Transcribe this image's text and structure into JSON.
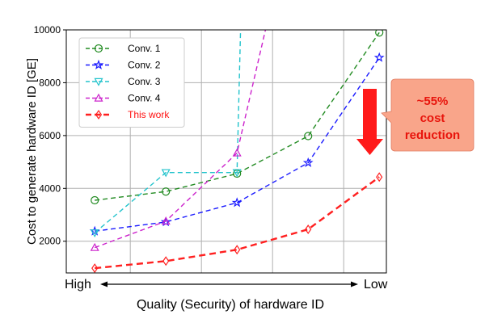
{
  "chart_data": {
    "type": "line",
    "ylabel": "Cost to generate hardware ID [GE]",
    "xlabel": "Quality (Security) of hardware ID",
    "x_end_labels": {
      "left": "High",
      "right": "Low"
    },
    "ylim": [
      800,
      10000
    ],
    "yticks": [
      2000,
      4000,
      6000,
      8000,
      10000
    ],
    "grid": true,
    "legend_position": "top-left",
    "series": [
      {
        "name": "Conv. 1",
        "color": "#228b22",
        "marker": "circle",
        "dash": "dashed",
        "x": [
          1,
          2,
          3,
          4,
          5
        ],
        "y": [
          3550,
          3880,
          4560,
          5980,
          9900
        ]
      },
      {
        "name": "Conv. 2",
        "color": "#1a1aff",
        "marker": "star",
        "dash": "dashed",
        "x": [
          1,
          2,
          3,
          4,
          5
        ],
        "y": [
          2380,
          2730,
          3460,
          4970,
          8950
        ]
      },
      {
        "name": "Conv. 3",
        "color": "#22c3cc",
        "marker": "triangle-down",
        "dash": "dashed",
        "x": [
          1,
          2,
          3,
          3.05
        ],
        "y": [
          2320,
          4600,
          4600,
          10000
        ]
      },
      {
        "name": "Conv. 4",
        "color": "#cc22cc",
        "marker": "triangle-up",
        "dash": "dashed",
        "x": [
          1,
          2,
          3,
          3.4
        ],
        "y": [
          1760,
          2760,
          5340,
          10000
        ]
      },
      {
        "name": "This work",
        "color": "#ff2020",
        "marker": "diamond",
        "dash": "dashed-bold",
        "x": [
          1,
          2,
          3,
          4,
          5
        ],
        "y": [
          980,
          1250,
          1680,
          2450,
          4430
        ]
      }
    ],
    "annotation": {
      "text": [
        "~55%",
        "cost",
        "reduction"
      ],
      "arrow_color": "#ff1a1a",
      "box_color": "#f9a58a"
    }
  }
}
